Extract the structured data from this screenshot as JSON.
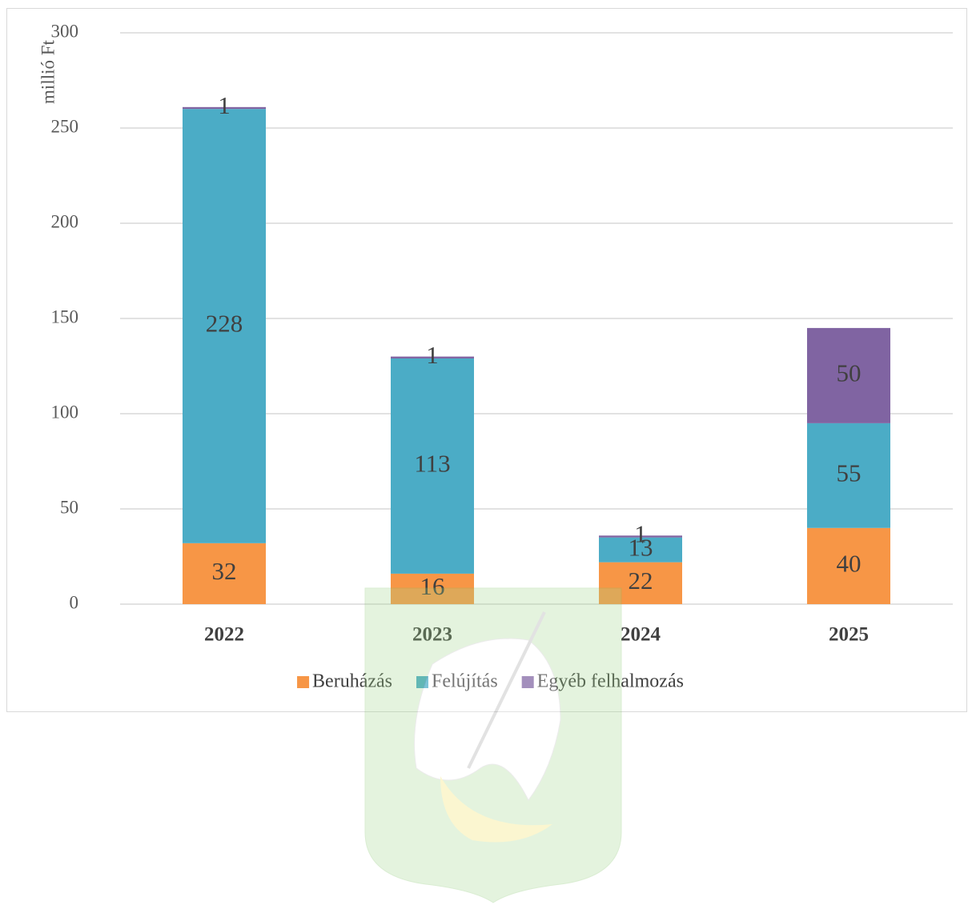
{
  "chart_data": {
    "type": "stacked-bar",
    "y_label": "millió Ft",
    "categories": [
      "2022",
      "2023",
      "2024",
      "2025"
    ],
    "series": [
      {
        "name": "Beruházás",
        "color": "#f79646",
        "values": [
          32,
          16,
          22,
          40
        ]
      },
      {
        "name": "Felújítás",
        "color": "#4bacc6",
        "values": [
          228,
          113,
          13,
          55
        ]
      },
      {
        "name": "Egyéb felhalmozás",
        "color": "#8064a2",
        "values": [
          1,
          1,
          1,
          50
        ]
      }
    ],
    "ylim": [
      0,
      300
    ],
    "yticks": [
      0,
      50,
      100,
      150,
      200,
      250,
      300
    ],
    "grid": true,
    "legend": "bottom"
  }
}
